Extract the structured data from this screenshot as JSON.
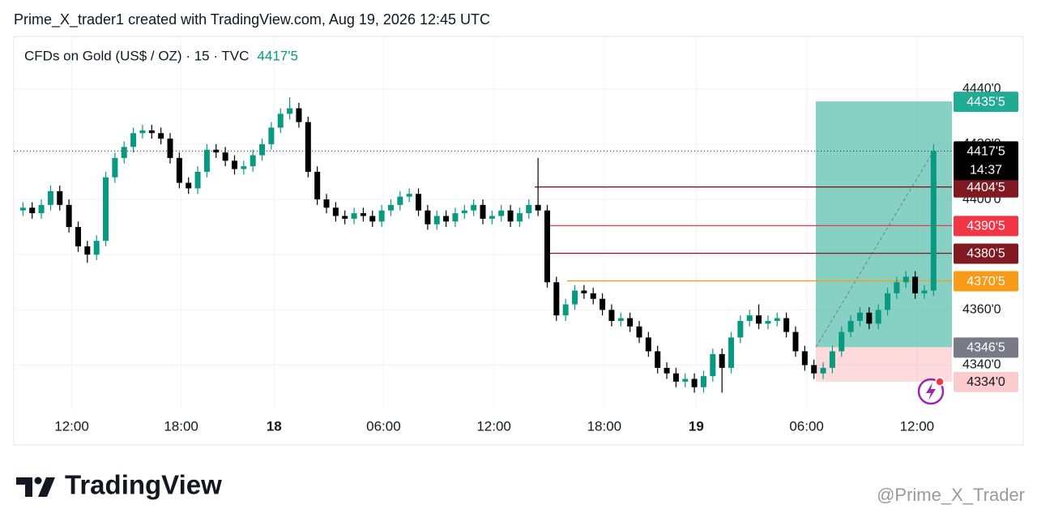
{
  "chart_data": {
    "type": "candlestick",
    "attribution": "Prime_X_trader1 created with TradingView.com, Aug 19, 2026 12:45 UTC",
    "symbol": "CFDs on Gold (US$ / OZ) · 15 · TVC",
    "up_color": "#089981",
    "down_color": "#000000",
    "xlim": [
      -1,
      101
    ],
    "ylim": [
      4324,
      4459
    ],
    "xticks": [
      {
        "value": 5.3,
        "label": "12:00"
      },
      {
        "value": 17.2,
        "label": "18:00"
      },
      {
        "value": 27.3,
        "label": "18"
      },
      {
        "value": 39.2,
        "label": "06:00"
      },
      {
        "value": 51.2,
        "label": "12:00"
      },
      {
        "value": 63.2,
        "label": "18:00"
      },
      {
        "value": 73.2,
        "label": "19"
      },
      {
        "value": 85.2,
        "label": "06:00"
      },
      {
        "value": 97.2,
        "label": "12:00"
      }
    ],
    "yticks": [
      {
        "value": 4440,
        "label": "4440'0"
      },
      {
        "value": 4420,
        "label": "4420'0"
      },
      {
        "value": 4400,
        "label": "4400'0"
      },
      {
        "value": 4380,
        "label": "4380'0"
      },
      {
        "value": 4360,
        "label": "4360'0"
      },
      {
        "value": 4340,
        "label": "4340'0"
      }
    ],
    "grid": true,
    "open": [
      4396,
      4397,
      4395,
      4398,
      4403,
      4398,
      4390,
      4383,
      4380,
      4385,
      4408,
      4415,
      4419,
      4424,
      4425,
      4424,
      4422,
      4415,
      4406,
      4404,
      4410,
      4418,
      4417,
      4414,
      4411,
      4412,
      4416,
      4420,
      4426,
      4431,
      4433,
      4428,
      4410,
      4400,
      4397,
      4394,
      4393,
      4395,
      4394,
      4392,
      4396,
      4398,
      4401,
      4402,
      4396,
      4391,
      4394,
      4392,
      4395,
      4396,
      4398,
      4393,
      4394,
      4396,
      4392,
      4395,
      4398,
      4396,
      4370,
      4358,
      4362,
      4367,
      4366,
      4364,
      4360,
      4356,
      4357,
      4354,
      4350,
      4345,
      4339,
      4337,
      4334,
      4335,
      4332,
      4336,
      4344,
      4339,
      4350,
      4356,
      4358,
      4355,
      4356,
      4357,
      4352,
      4345,
      4340,
      4337,
      4339,
      4345,
      4352,
      4356,
      4359,
      4355,
      4360,
      4366,
      4370,
      4372,
      4366,
      4367
    ],
    "high": [
      4399,
      4399,
      4400,
      4405,
      4405,
      4400,
      4392,
      4385,
      4387,
      4410,
      4417,
      4421,
      4426,
      4427,
      4427,
      4426,
      4424,
      4417,
      4408,
      4412,
      4420,
      4420,
      4419,
      4416,
      4414,
      4418,
      4422,
      4428,
      4433,
      4437,
      4435,
      4430,
      4412,
      4402,
      4399,
      4396,
      4397,
      4397,
      4396,
      4398,
      4400,
      4403,
      4404,
      4404,
      4398,
      4396,
      4396,
      4397,
      4398,
      4400,
      4400,
      4396,
      4398,
      4398,
      4397,
      4400,
      4415,
      4398,
      4372,
      4364,
      4369,
      4369,
      4368,
      4366,
      4362,
      4359,
      4359,
      4356,
      4352,
      4347,
      4341,
      4339,
      4337,
      4337,
      4338,
      4346,
      4346,
      4352,
      4358,
      4360,
      4362,
      4358,
      4359,
      4359,
      4354,
      4347,
      4342,
      4341,
      4347,
      4354,
      4358,
      4361,
      4361,
      4362,
      4368,
      4372,
      4374,
      4374,
      4369,
      4420
    ],
    "low": [
      4394,
      4393,
      4393,
      4396,
      4396,
      4388,
      4381,
      4377,
      4378,
      4383,
      4406,
      4413,
      4417,
      4422,
      4422,
      4420,
      4413,
      4404,
      4402,
      4402,
      4408,
      4415,
      4412,
      4409,
      4409,
      4410,
      4414,
      4418,
      4424,
      4429,
      4426,
      4408,
      4398,
      4395,
      4392,
      4391,
      4391,
      4392,
      4390,
      4390,
      4394,
      4396,
      4399,
      4394,
      4389,
      4389,
      4390,
      4390,
      4393,
      4394,
      4391,
      4391,
      4392,
      4390,
      4390,
      4393,
      4394,
      4368,
      4356,
      4356,
      4360,
      4364,
      4362,
      4358,
      4354,
      4354,
      4352,
      4348,
      4343,
      4337,
      4335,
      4332,
      4332,
      4330,
      4330,
      4334,
      4330,
      4337,
      4348,
      4354,
      4353,
      4353,
      4354,
      4350,
      4343,
      4338,
      4335,
      4335,
      4337,
      4343,
      4350,
      4354,
      4353,
      4353,
      4358,
      4364,
      4368,
      4364,
      4364,
      4365
    ],
    "close": [
      4397,
      4395,
      4398,
      4403,
      4398,
      4390,
      4383,
      4380,
      4385,
      4408,
      4415,
      4419,
      4424,
      4425,
      4424,
      4422,
      4415,
      4406,
      4404,
      4410,
      4418,
      4417,
      4414,
      4411,
      4412,
      4416,
      4420,
      4426,
      4431,
      4433,
      4428,
      4410,
      4400,
      4397,
      4394,
      4393,
      4395,
      4394,
      4392,
      4396,
      4398,
      4401,
      4402,
      4396,
      4391,
      4394,
      4392,
      4395,
      4396,
      4398,
      4393,
      4394,
      4396,
      4392,
      4395,
      4398,
      4396,
      4370,
      4358,
      4362,
      4367,
      4366,
      4364,
      4360,
      4356,
      4357,
      4354,
      4350,
      4345,
      4339,
      4337,
      4334,
      4335,
      4332,
      4336,
      4344,
      4339,
      4350,
      4356,
      4358,
      4355,
      4356,
      4357,
      4352,
      4345,
      4340,
      4337,
      4339,
      4345,
      4352,
      4356,
      4359,
      4355,
      4360,
      4366,
      4370,
      4372,
      4366,
      4367,
      4417.5
    ],
    "last_price": {
      "value": 4417.5,
      "label": "4417'5",
      "countdown": "14:37",
      "color": "#000000"
    },
    "levels": [
      {
        "value": 4404.5,
        "label": "4404'5",
        "color": "#801922"
      },
      {
        "value": 4390.5,
        "label": "4390'5",
        "color": "#f23645"
      },
      {
        "value": 4380.5,
        "label": "4380'5",
        "color": "#801922"
      },
      {
        "value": 4370.5,
        "label": "4370'5",
        "color": "#f89b18"
      }
    ],
    "position": {
      "target": {
        "value": 4435.5,
        "label": "4435'5",
        "color": "#22ab94"
      },
      "entry": {
        "value": 4346.5,
        "label": "4346'5",
        "color": "#787b86"
      },
      "stop": {
        "value": 4334,
        "label": "4334'0",
        "color": "#fccbcd"
      }
    },
    "brand": "TradingView",
    "watermark": "@Prime_X_Trader"
  }
}
